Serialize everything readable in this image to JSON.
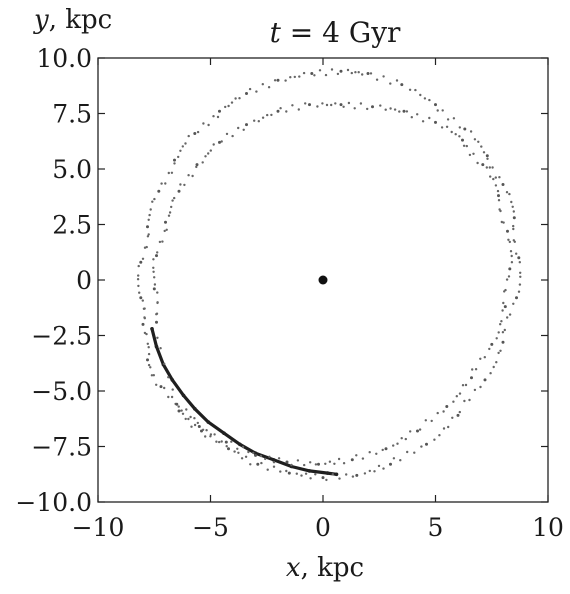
{
  "chart_data": {
    "type": "scatter",
    "title": "t = 4 Gyr",
    "title_italic_part": "t",
    "title_rest": " = 4 Gyr",
    "xlabel": "x, kpc",
    "xlabel_italic": "x",
    "xlabel_rest": ", kpc",
    "ylabel": "y, kpc",
    "ylabel_italic": "y",
    "ylabel_rest": ", kpc",
    "xlim": [
      -10,
      10
    ],
    "ylim": [
      -10,
      10
    ],
    "x_ticks": [
      {
        "value": -10,
        "label": "−10"
      },
      {
        "value": -5,
        "label": "−5"
      },
      {
        "value": 0,
        "label": "0"
      },
      {
        "value": 5,
        "label": "5"
      },
      {
        "value": 10,
        "label": "10"
      }
    ],
    "y_ticks": [
      {
        "value": 10,
        "label": "10.0"
      },
      {
        "value": 7.5,
        "label": "7.5"
      },
      {
        "value": 5,
        "label": "5.0"
      },
      {
        "value": 2.5,
        "label": "2.5"
      },
      {
        "value": 0,
        "label": "0"
      },
      {
        "value": -2.5,
        "label": "−2.5"
      },
      {
        "value": -5,
        "label": "−5.0"
      },
      {
        "value": -7.5,
        "label": "−7.5"
      },
      {
        "value": -10,
        "label": "−10.0"
      }
    ],
    "grid": false,
    "center_marker": {
      "x": 0,
      "y": 0
    },
    "series": [
      {
        "kind": "dense-arc",
        "points": [
          [
            -7.6,
            -2.2
          ],
          [
            -7.4,
            -3.0
          ],
          [
            -7.1,
            -3.8
          ],
          [
            -6.7,
            -4.5
          ],
          [
            -6.2,
            -5.2
          ],
          [
            -5.7,
            -5.8
          ],
          [
            -5.1,
            -6.4
          ],
          [
            -4.4,
            -6.9
          ],
          [
            -3.7,
            -7.4
          ],
          [
            -3.0,
            -7.8
          ],
          [
            -2.2,
            -8.1
          ],
          [
            -1.4,
            -8.4
          ],
          [
            -0.6,
            -8.6
          ],
          [
            0.2,
            -8.7
          ],
          [
            0.6,
            -8.75
          ]
        ]
      },
      {
        "kind": "outer-ring",
        "points": [
          [
            -8.0,
            -2.0
          ],
          [
            -7.8,
            -3.6
          ],
          [
            -7.2,
            -4.8
          ],
          [
            -6.4,
            -5.9
          ],
          [
            -5.4,
            -6.8
          ],
          [
            -4.2,
            -7.6
          ],
          [
            -2.9,
            -8.3
          ],
          [
            -1.5,
            -8.7
          ],
          [
            0.0,
            -8.9
          ],
          [
            1.5,
            -8.8
          ],
          [
            3.0,
            -8.3
          ],
          [
            4.6,
            -7.4
          ],
          [
            6.0,
            -6.1
          ],
          [
            7.2,
            -4.5
          ],
          [
            8.0,
            -2.8
          ],
          [
            8.6,
            -0.8
          ],
          [
            8.7,
            1.0
          ],
          [
            8.5,
            2.8
          ],
          [
            8.0,
            4.3
          ],
          [
            7.3,
            5.6
          ],
          [
            6.3,
            6.8
          ],
          [
            5.0,
            7.9
          ],
          [
            3.5,
            8.8
          ],
          [
            2.0,
            9.3
          ],
          [
            0.8,
            9.4
          ],
          [
            -0.5,
            9.3
          ],
          [
            -2.0,
            9.0
          ],
          [
            -3.4,
            8.4
          ],
          [
            -4.6,
            7.6
          ],
          [
            -5.7,
            6.6
          ],
          [
            -6.6,
            5.4
          ],
          [
            -7.3,
            4.0
          ],
          [
            -7.8,
            2.4
          ],
          [
            -8.1,
            0.8
          ],
          [
            -8.1,
            -0.8
          ]
        ]
      },
      {
        "kind": "inner-ring",
        "points": [
          [
            -6.5,
            -5.6
          ],
          [
            -5.5,
            -6.6
          ],
          [
            -4.3,
            -7.3
          ],
          [
            -3.0,
            -7.9
          ],
          [
            -1.6,
            -8.2
          ],
          [
            -0.2,
            -8.3
          ],
          [
            1.3,
            -8.1
          ],
          [
            2.8,
            -7.6
          ],
          [
            4.2,
            -6.8
          ],
          [
            5.5,
            -5.7
          ],
          [
            6.6,
            -4.4
          ],
          [
            7.5,
            -2.9
          ],
          [
            8.1,
            -1.2
          ],
          [
            8.3,
            0.5
          ],
          [
            8.2,
            2.2
          ],
          [
            7.8,
            3.8
          ],
          [
            7.1,
            5.2
          ],
          [
            6.2,
            6.3
          ],
          [
            5.0,
            7.1
          ],
          [
            3.6,
            7.6
          ],
          [
            2.2,
            7.8
          ],
          [
            0.8,
            7.9
          ],
          [
            -0.6,
            7.9
          ],
          [
            -2.0,
            7.6
          ],
          [
            -3.4,
            7.0
          ],
          [
            -4.6,
            6.2
          ],
          [
            -5.6,
            5.2
          ],
          [
            -6.4,
            4.0
          ],
          [
            -7.0,
            2.6
          ],
          [
            -7.4,
            1.1
          ],
          [
            -7.5,
            -0.4
          ],
          [
            -7.4,
            -1.9
          ]
        ]
      }
    ]
  }
}
